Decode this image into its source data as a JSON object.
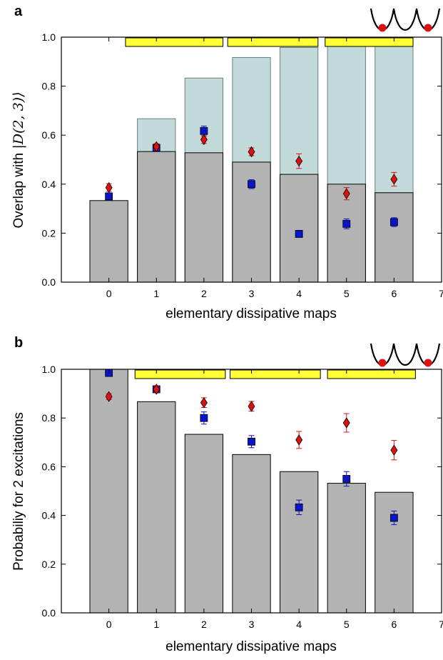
{
  "chart_data": [
    {
      "type": "bar",
      "panel_label": "a",
      "xlabel": "elementary dissipative maps",
      "ylabel_prefix": "Overlap with ",
      "ylabel_math": "|D(2, 3)⟩",
      "x_ticks": [
        "0",
        "1",
        "2",
        "3",
        "4",
        "5",
        "6",
        "7"
      ],
      "y_ticks": [
        "0.0",
        "0.2",
        "0.4",
        "0.6",
        "0.8",
        "1.0"
      ],
      "xlim": [
        -1,
        7
      ],
      "ylim": [
        0,
        1.0
      ],
      "bar_x": [
        0,
        1,
        2,
        3,
        4,
        5,
        6
      ],
      "background_bars": [
        0.0,
        0.667,
        0.833,
        0.917,
        0.958,
        0.979,
        0.99
      ],
      "bars": [
        0.333,
        0.533,
        0.528,
        0.49,
        0.44,
        0.4,
        0.365
      ],
      "series": [
        {
          "marker": "square",
          "x": [
            0,
            1,
            2,
            3,
            4,
            5,
            6
          ],
          "values": [
            0.35,
            0.548,
            0.617,
            0.4,
            0.197,
            0.238,
            0.245
          ],
          "err": [
            0.01,
            0.01,
            0.02,
            0.018,
            0.012,
            0.02,
            0.018
          ]
        },
        {
          "marker": "diamond",
          "x": [
            0,
            1,
            2,
            3,
            4,
            5,
            6
          ],
          "values": [
            0.386,
            0.553,
            0.582,
            0.532,
            0.494,
            0.361,
            0.42
          ],
          "err": [
            0.016,
            0.012,
            0.016,
            0.016,
            0.03,
            0.025,
            0.028
          ]
        }
      ],
      "segments": [
        [
          0.35,
          2.4
        ],
        [
          2.5,
          4.4
        ],
        [
          4.55,
          6.4
        ]
      ],
      "colors": {
        "bar": "#b3b3b3",
        "background_bar": "#c3dada",
        "square": "#0a14c8",
        "diamond": "#dd1111",
        "segment": "#ffff33",
        "well_ball": "#dd1111"
      }
    },
    {
      "type": "bar",
      "panel_label": "b",
      "xlabel": "elementary dissipative maps",
      "ylabel": "Probabiliy for 2 excitations",
      "x_ticks": [
        "0",
        "1",
        "2",
        "3",
        "4",
        "5",
        "6",
        "7"
      ],
      "y_ticks": [
        "0.0",
        "0.2",
        "0.4",
        "0.6",
        "0.8",
        "1.0"
      ],
      "xlim": [
        -1,
        7
      ],
      "ylim": [
        0,
        1.0
      ],
      "bar_x": [
        0,
        1,
        2,
        3,
        4,
        5,
        6
      ],
      "bars": [
        1.0,
        0.867,
        0.733,
        0.65,
        0.58,
        0.532,
        0.495
      ],
      "series": [
        {
          "marker": "square",
          "x": [
            0,
            1,
            2,
            3,
            4,
            5,
            6
          ],
          "values": [
            0.985,
            0.918,
            0.8,
            0.703,
            0.433,
            0.55,
            0.39
          ],
          "err": [
            0.008,
            0.012,
            0.025,
            0.025,
            0.03,
            0.03,
            0.028
          ]
        },
        {
          "marker": "diamond",
          "x": [
            0,
            1,
            2,
            3,
            4,
            5,
            6
          ],
          "values": [
            0.888,
            0.918,
            0.863,
            0.848,
            0.71,
            0.78,
            0.668
          ],
          "err": [
            0.012,
            0.012,
            0.02,
            0.02,
            0.035,
            0.038,
            0.04
          ]
        }
      ],
      "segments": [
        [
          0.55,
          2.45
        ],
        [
          2.55,
          4.45
        ],
        [
          4.6,
          6.45
        ]
      ],
      "colors": {
        "bar": "#b3b3b3",
        "square": "#0a14c8",
        "diamond": "#dd1111",
        "segment": "#ffff33",
        "well_ball": "#dd1111"
      }
    }
  ]
}
